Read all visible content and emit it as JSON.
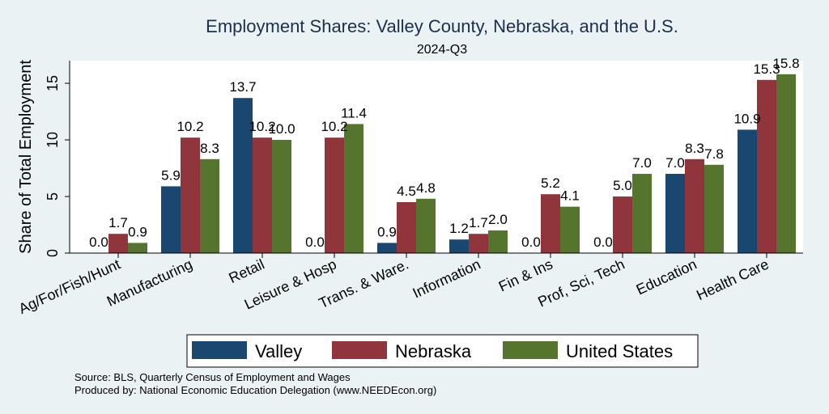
{
  "chart_data": {
    "type": "bar",
    "title": "Employment Shares: Valley County, Nebraska, and the U.S.",
    "subtitle": "2024-Q3",
    "ylabel": "Share of Total Employment",
    "xlabel": "",
    "ylim": [
      0,
      17
    ],
    "yticks": [
      0,
      5,
      10,
      15
    ],
    "categories": [
      "Ag/For/Fish/Hunt",
      "Manufacturing",
      "Retail",
      "Leisure & Hosp",
      "Trans. & Ware.",
      "Information",
      "Fin & Ins",
      "Prof, Sci, Tech",
      "Education",
      "Health Care"
    ],
    "series": [
      {
        "name": "Valley",
        "color": "#1a476f",
        "values": [
          0.0,
          5.9,
          13.7,
          0.0,
          0.9,
          1.2,
          0.0,
          0.0,
          7.0,
          10.9
        ]
      },
      {
        "name": "Nebraska",
        "color": "#90353b",
        "values": [
          1.7,
          10.2,
          10.2,
          10.2,
          4.5,
          1.7,
          5.2,
          5.0,
          8.3,
          15.3
        ]
      },
      {
        "name": "United States",
        "color": "#55752f",
        "values": [
          0.9,
          8.3,
          10.0,
          11.4,
          4.8,
          2.0,
          4.1,
          7.0,
          7.8,
          15.8
        ]
      }
    ],
    "grid": false,
    "legend_position": "bottom"
  },
  "notes": {
    "source": "Source: BLS, Quarterly Census of Employment and Wages",
    "produced_by": "Produced by: National Economic Education Delegation (www.NEEDEcon.org)"
  }
}
